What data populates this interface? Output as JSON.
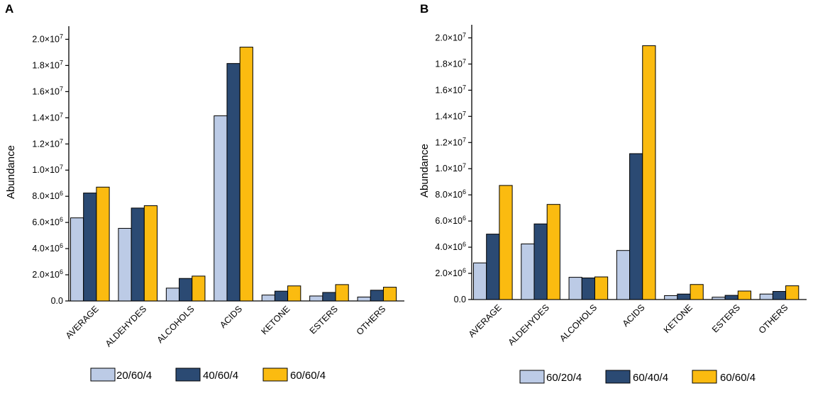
{
  "chart_data": [
    {
      "type": "bar",
      "panel_label": "A",
      "ylabel": "Abundance",
      "xlabel": "",
      "ylim": [
        0,
        21000000
      ],
      "yticks": [
        {
          "value": 0,
          "mant": "0.0",
          "exp": ""
        },
        {
          "value": 2000000,
          "mant": "2.0×10",
          "exp": "6"
        },
        {
          "value": 4000000,
          "mant": "4.0×10",
          "exp": "6"
        },
        {
          "value": 6000000,
          "mant": "6.0×10",
          "exp": "6"
        },
        {
          "value": 8000000,
          "mant": "8.0×10",
          "exp": "6"
        },
        {
          "value": 10000000,
          "mant": "1.0×10",
          "exp": "7"
        },
        {
          "value": 12000000,
          "mant": "1.2×10",
          "exp": "7"
        },
        {
          "value": 14000000,
          "mant": "1.4×10",
          "exp": "7"
        },
        {
          "value": 16000000,
          "mant": "1.6×10",
          "exp": "7"
        },
        {
          "value": 18000000,
          "mant": "1.8×10",
          "exp": "7"
        },
        {
          "value": 20000000,
          "mant": "2.0×10",
          "exp": "7"
        }
      ],
      "categories": [
        "AVERAGE",
        "ALDEHYDES",
        "ALCOHOLS",
        "ACIDS",
        "KETONE",
        "ESTERS",
        "OTHERS"
      ],
      "series": [
        {
          "name": "20/60/4",
          "color": "#bccbe6",
          "values": [
            6350000,
            5550000,
            980000,
            14150000,
            450000,
            380000,
            300000
          ]
        },
        {
          "name": "40/60/4",
          "color": "#2b4a73",
          "values": [
            8250000,
            7100000,
            1720000,
            18150000,
            750000,
            650000,
            820000
          ]
        },
        {
          "name": "60/60/4",
          "color": "#fbbb10",
          "values": [
            8700000,
            7280000,
            1900000,
            19400000,
            1150000,
            1250000,
            1050000
          ]
        }
      ],
      "legend_position": "bottom"
    },
    {
      "type": "bar",
      "panel_label": "B",
      "ylabel": "Abundance",
      "xlabel": "",
      "ylim": [
        0,
        21000000
      ],
      "yticks": [
        {
          "value": 0,
          "mant": "0.0",
          "exp": ""
        },
        {
          "value": 2000000,
          "mant": "2.0×10",
          "exp": "6"
        },
        {
          "value": 4000000,
          "mant": "4.0×10",
          "exp": "6"
        },
        {
          "value": 6000000,
          "mant": "6.0×10",
          "exp": "6"
        },
        {
          "value": 8000000,
          "mant": "8.0×10",
          "exp": "6"
        },
        {
          "value": 10000000,
          "mant": "1.0×10",
          "exp": "7"
        },
        {
          "value": 12000000,
          "mant": "1.2×10",
          "exp": "7"
        },
        {
          "value": 14000000,
          "mant": "1.4×10",
          "exp": "7"
        },
        {
          "value": 16000000,
          "mant": "1.6×10",
          "exp": "7"
        },
        {
          "value": 18000000,
          "mant": "1.8×10",
          "exp": "7"
        },
        {
          "value": 20000000,
          "mant": "2.0×10",
          "exp": "7"
        }
      ],
      "categories": [
        "AVERAGE",
        "ALDEHYDES",
        "ALCOHOLS",
        "ACIDS",
        "KETONE",
        "ESTERS",
        "OTHERS"
      ],
      "series": [
        {
          "name": "60/20/4",
          "color": "#bccbe6",
          "values": [
            2800000,
            4250000,
            1700000,
            3750000,
            300000,
            180000,
            420000
          ]
        },
        {
          "name": "60/40/4",
          "color": "#2b4a73",
          "values": [
            5000000,
            5780000,
            1650000,
            11150000,
            420000,
            320000,
            620000
          ]
        },
        {
          "name": "60/60/4",
          "color": "#fbbb10",
          "values": [
            8720000,
            7270000,
            1730000,
            19400000,
            1150000,
            650000,
            1050000
          ]
        }
      ],
      "legend_position": "bottom"
    }
  ]
}
